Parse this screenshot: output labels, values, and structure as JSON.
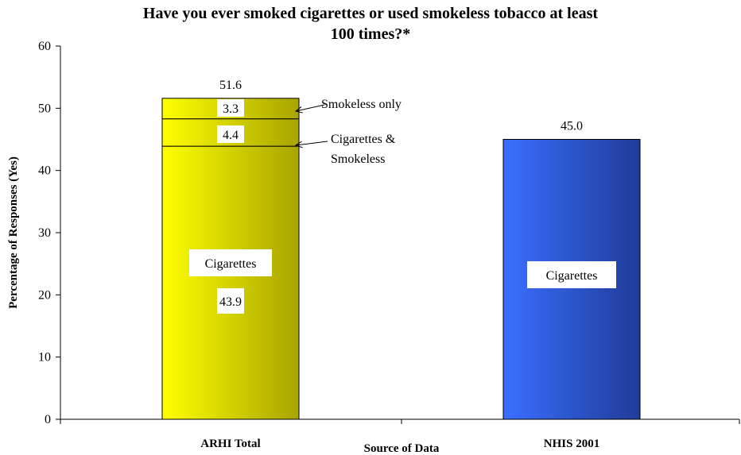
{
  "chart_data": {
    "type": "bar",
    "title_line1": "Have you ever smoked cigarettes or used smokeless tobacco at least",
    "title_line2": "100 times?*",
    "xlabel": "Source of Data",
    "ylabel": "Percentage of Responses (Yes)",
    "ylim": [
      0,
      60
    ],
    "yticks": [
      "0",
      "10",
      "20",
      "30",
      "40",
      "50",
      "60"
    ],
    "categories": [
      "ARHI Total",
      "NHIS 2001"
    ],
    "totals": [
      51.6,
      45.0
    ],
    "total_labels": [
      "51.6",
      "45.0"
    ],
    "stacks": [
      {
        "category": "ARHI Total",
        "segments": [
          {
            "name": "Cigarettes",
            "value": 43.9,
            "value_label": "43.9"
          },
          {
            "name": "Cigarettes & Smokeless",
            "value": 4.4,
            "value_label": "4.4"
          },
          {
            "name": "Smokeless only",
            "value": 3.3,
            "value_label": "3.3"
          }
        ]
      },
      {
        "category": "NHIS 2001",
        "segments": [
          {
            "name": "Cigarettes",
            "value": 45.0,
            "value_label": ""
          }
        ]
      }
    ],
    "in_bar_labels": [
      "Cigarettes",
      "Cigarettes"
    ],
    "annotations": {
      "smokeless_only": "Smokeless only",
      "cig_smokeless_line1": "Cigarettes &",
      "cig_smokeless_line2": "Smokeless"
    },
    "colors": {
      "arhi_light": "#ffff00",
      "arhi_dark": "#a8a400",
      "nhis_light": "#3a6fff",
      "nhis_dark": "#1f3c99"
    },
    "grid": false,
    "legend": "none"
  }
}
